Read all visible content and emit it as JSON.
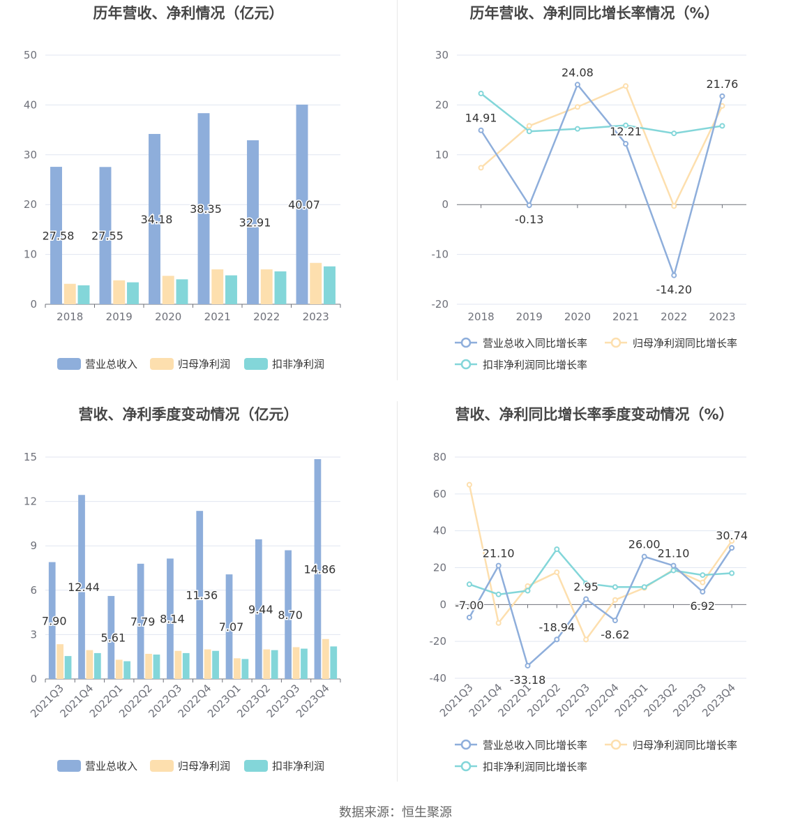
{
  "source_text": "数据来源：恒生聚源",
  "colors": {
    "revenue": "#8eaedb",
    "net_profit": "#fddfae",
    "deducted_profit": "#83d6d9",
    "axis": "#6e7079",
    "grid": "#e0e6f1",
    "title": "#464646"
  },
  "chart_data": [
    {
      "type": "bar",
      "title": "历年营收、净利情况（亿元）",
      "categories": [
        "2018",
        "2019",
        "2020",
        "2021",
        "2022",
        "2023"
      ],
      "ylim": [
        0,
        50
      ],
      "yticks": [
        0,
        10,
        20,
        30,
        40,
        50
      ],
      "series": [
        {
          "name": "营业总收入",
          "values": [
            27.58,
            27.55,
            34.18,
            38.35,
            32.91,
            40.07
          ]
        },
        {
          "name": "归母净利润",
          "values": [
            4.1,
            4.8,
            5.7,
            7.0,
            7.0,
            8.3
          ]
        },
        {
          "name": "扣非净利润",
          "values": [
            3.8,
            4.4,
            5.0,
            5.8,
            6.6,
            7.6
          ]
        }
      ],
      "data_labels": [
        "27.58",
        "27.55",
        "34.18",
        "38.35",
        "32.91",
        "40.07"
      ],
      "legend": "bottom"
    },
    {
      "type": "line",
      "title": "历年营收、净利同比增长率情况（%）",
      "categories": [
        "2018",
        "2019",
        "2020",
        "2021",
        "2022",
        "2023"
      ],
      "ylim": [
        -20,
        30
      ],
      "yticks": [
        -20,
        -10,
        0,
        10,
        20,
        30
      ],
      "series": [
        {
          "name": "营业总收入同比增长率",
          "values": [
            14.91,
            -0.13,
            24.08,
            12.21,
            -14.2,
            21.76
          ]
        },
        {
          "name": "归母净利润同比增长率",
          "values": [
            7.4,
            15.8,
            19.6,
            23.8,
            -0.3,
            19.8
          ]
        },
        {
          "name": "扣非净利润同比增长率",
          "values": [
            22.3,
            14.7,
            15.2,
            15.9,
            14.3,
            15.8
          ]
        }
      ],
      "data_labels": [
        "14.91",
        "-0.13",
        "24.08",
        "12.21",
        "-14.20",
        "21.76"
      ],
      "legend": "bottom"
    },
    {
      "type": "bar",
      "title": "营收、净利季度变动情况（亿元）",
      "categories": [
        "2021Q3",
        "2021Q4",
        "2022Q1",
        "2022Q2",
        "2022Q3",
        "2022Q4",
        "2023Q1",
        "2023Q2",
        "2023Q3",
        "2023Q4"
      ],
      "ylim": [
        0,
        15
      ],
      "yticks": [
        0,
        3,
        6,
        9,
        12,
        15
      ],
      "series": [
        {
          "name": "营业总收入",
          "values": [
            7.9,
            12.44,
            5.61,
            7.79,
            8.14,
            11.36,
            7.07,
            9.44,
            8.7,
            14.86
          ]
        },
        {
          "name": "归母净利润",
          "values": [
            2.35,
            1.95,
            1.3,
            1.7,
            1.9,
            2.0,
            1.4,
            2.0,
            2.15,
            2.7
          ]
        },
        {
          "name": "扣非净利润",
          "values": [
            1.55,
            1.75,
            1.2,
            1.65,
            1.75,
            1.9,
            1.35,
            1.95,
            2.05,
            2.2
          ]
        }
      ],
      "data_labels": [
        "7.90",
        "12.44",
        "5.61",
        "7.79",
        "8.14",
        "11.36",
        "7.07",
        "9.44",
        "8.70",
        "14.86"
      ],
      "legend": "bottom"
    },
    {
      "type": "line",
      "title": "营收、净利同比增长率季度变动情况（%）",
      "categories": [
        "2021Q3",
        "2021Q4",
        "2022Q1",
        "2022Q2",
        "2022Q3",
        "2022Q4",
        "2023Q1",
        "2023Q2",
        "2023Q3",
        "2023Q4"
      ],
      "ylim": [
        -40,
        80
      ],
      "yticks": [
        -40,
        -20,
        0,
        20,
        40,
        60,
        80
      ],
      "series": [
        {
          "name": "营业总收入同比增长率",
          "values": [
            -7.0,
            21.1,
            -33.18,
            -18.94,
            2.95,
            -8.62,
            26.0,
            21.1,
            6.92,
            30.74
          ]
        },
        {
          "name": "归母净利润同比增长率",
          "values": [
            65,
            -10,
            10,
            17.5,
            -19,
            2.5,
            9,
            19,
            12,
            34.5
          ]
        },
        {
          "name": "扣非净利润同比增长率",
          "values": [
            11,
            5.5,
            7.5,
            30,
            11.5,
            9.5,
            9.5,
            18.5,
            16,
            17
          ]
        }
      ],
      "data_labels": [
        "-7.00",
        "21.10",
        "-33.18",
        "-18.94",
        "2.95",
        "-8.62",
        "26.00",
        "21.10",
        "6.92",
        "30.74"
      ],
      "legend": "bottom"
    }
  ]
}
